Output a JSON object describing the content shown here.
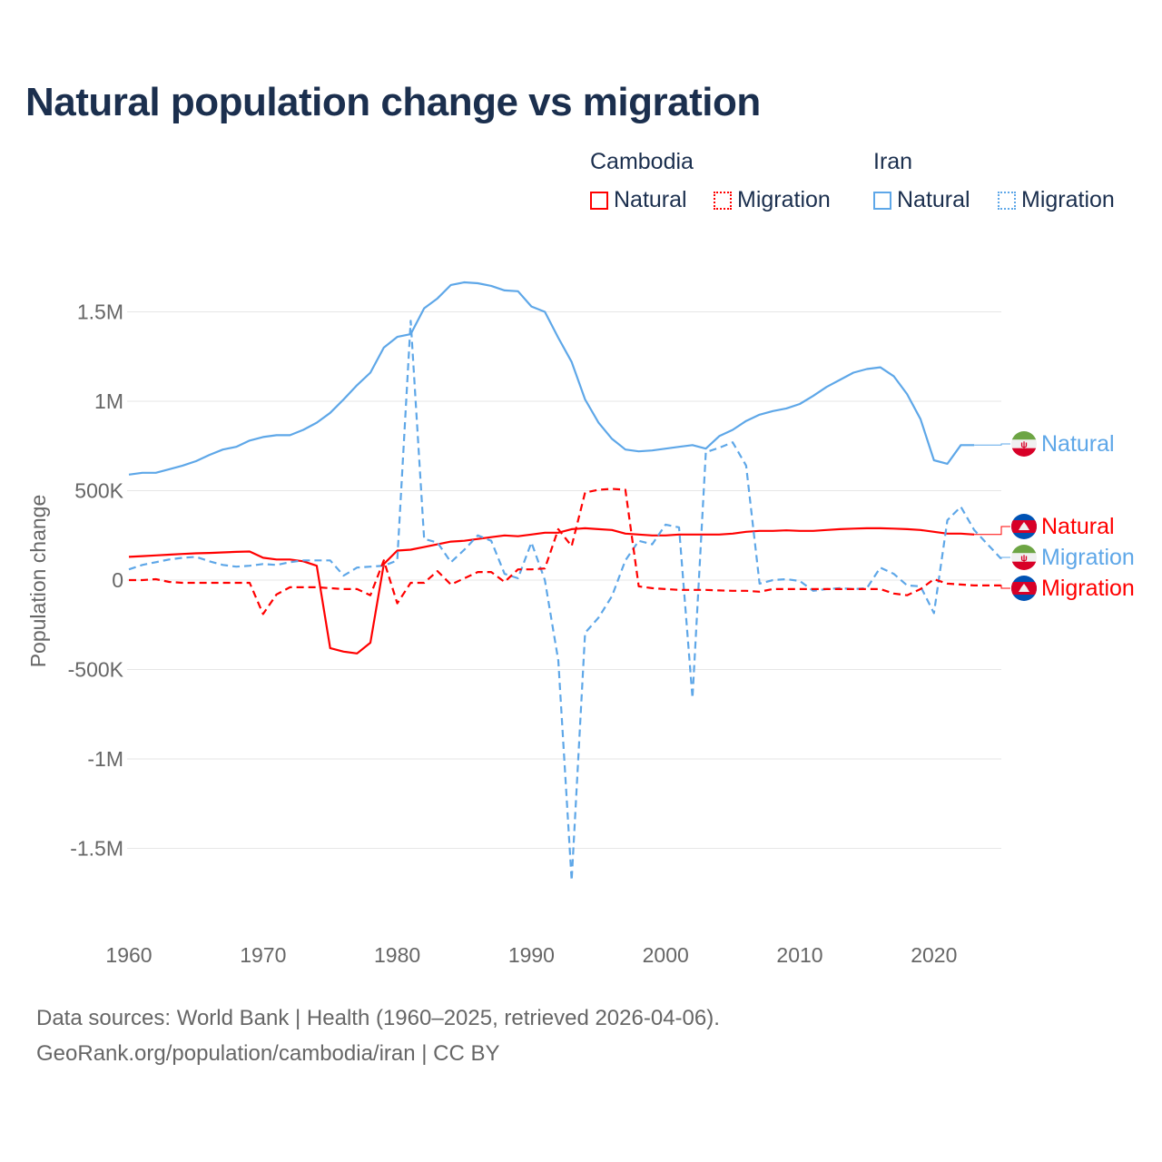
{
  "title": "Natural population change vs migration",
  "legend": {
    "groups": [
      {
        "name": "Cambodia",
        "items": [
          "Natural",
          "Migration"
        ],
        "color": "#ff0000"
      },
      {
        "name": "Iran",
        "items": [
          "Natural",
          "Migration"
        ],
        "color": "#5ea7e8"
      }
    ]
  },
  "footer": {
    "line1": "Data sources: World Bank | Health (1960–2025, retrieved 2026-04-06).",
    "line2": "GeoRank.org/population/cambodia/iran | CC BY"
  },
  "chart_data": {
    "type": "line",
    "title": "Natural population change vs migration",
    "xlabel": "",
    "ylabel": "Population change",
    "xlim": [
      1960,
      2025
    ],
    "ylim": [
      -1750000,
      1800000
    ],
    "x_ticks": [
      1960,
      1970,
      1980,
      1990,
      2000,
      2010,
      2020
    ],
    "y_ticks": [
      {
        "value": 1500000,
        "label": "1.5M"
      },
      {
        "value": 1000000,
        "label": "1M"
      },
      {
        "value": 500000,
        "label": "500K"
      },
      {
        "value": 0,
        "label": "0"
      },
      {
        "value": -500000,
        "label": "-500K"
      },
      {
        "value": -1000000,
        "label": "-1M"
      },
      {
        "value": -1500000,
        "label": "-1.5M"
      }
    ],
    "grid": true,
    "legend_position": "top-right",
    "series": [
      {
        "name": "Natural",
        "country": "Iran",
        "color": "#5ea7e8",
        "dash": false,
        "start": 1960,
        "values": [
          0.59,
          0.6,
          0.6,
          0.62,
          0.64,
          0.665,
          0.7,
          0.73,
          0.745,
          0.78,
          0.8,
          0.81,
          0.81,
          0.84,
          0.88,
          0.935,
          1.01,
          1.09,
          1.16,
          1.3,
          1.36,
          1.375,
          1.52,
          1.575,
          1.65,
          1.665,
          1.66,
          1.645,
          1.62,
          1.615,
          1.53,
          1.5,
          1.355,
          1.22,
          1.01,
          0.88,
          0.79,
          0.73,
          0.72,
          0.725,
          0.735,
          0.745,
          0.755,
          0.735,
          0.805,
          0.84,
          0.89,
          0.925,
          0.945,
          0.96,
          0.985,
          1.03,
          1.08,
          1.12,
          1.16,
          1.18,
          1.19,
          1.14,
          1.04,
          0.9,
          0.67,
          0.65,
          0.755,
          0.755
        ]
      },
      {
        "name": "Natural",
        "country": "Cambodia",
        "color": "#ff0000",
        "dash": false,
        "start": 1960,
        "values": [
          0.13,
          0.134,
          0.138,
          0.142,
          0.146,
          0.15,
          0.152,
          0.155,
          0.158,
          0.16,
          0.125,
          0.115,
          0.115,
          0.105,
          0.08,
          -0.38,
          -0.4,
          -0.41,
          -0.35,
          0.09,
          0.165,
          0.17,
          0.185,
          0.2,
          0.215,
          0.22,
          0.23,
          0.24,
          0.25,
          0.245,
          0.255,
          0.265,
          0.265,
          0.285,
          0.29,
          0.285,
          0.28,
          0.26,
          0.255,
          0.25,
          0.25,
          0.255,
          0.255,
          0.255,
          0.255,
          0.26,
          0.27,
          0.275,
          0.275,
          0.278,
          0.275,
          0.275,
          0.28,
          0.285,
          0.288,
          0.29,
          0.29,
          0.288,
          0.285,
          0.28,
          0.27,
          0.26,
          0.26,
          0.255
        ]
      },
      {
        "name": "Migration",
        "country": "Iran",
        "color": "#5ea7e8",
        "dash": true,
        "start": 1960,
        "values": [
          0.06,
          0.085,
          0.1,
          0.115,
          0.125,
          0.13,
          0.105,
          0.085,
          0.075,
          0.08,
          0.09,
          0.085,
          0.1,
          0.11,
          0.11,
          0.11,
          0.025,
          0.07,
          0.075,
          0.08,
          0.11,
          1.45,
          0.23,
          0.21,
          0.1,
          0.17,
          0.25,
          0.22,
          0.035,
          0.01,
          0.21,
          0.0,
          -0.45,
          -1.68,
          -0.295,
          -0.21,
          -0.09,
          0.11,
          0.22,
          0.2,
          0.31,
          0.295,
          -0.66,
          0.715,
          0.74,
          0.77,
          0.64,
          -0.02,
          0.0,
          0.005,
          -0.005,
          -0.06,
          -0.05,
          -0.045,
          -0.05,
          -0.045,
          0.07,
          0.035,
          -0.03,
          -0.035,
          -0.185,
          0.335,
          0.41,
          0.28,
          0.2,
          0.12
        ]
      },
      {
        "name": "Migration",
        "country": "Cambodia",
        "color": "#ff0000",
        "dash": true,
        "start": 1960,
        "values": [
          0.0,
          0.0,
          0.005,
          -0.01,
          -0.015,
          -0.015,
          -0.015,
          -0.015,
          -0.015,
          -0.015,
          -0.19,
          -0.08,
          -0.04,
          -0.04,
          -0.04,
          -0.045,
          -0.05,
          -0.05,
          -0.085,
          0.11,
          -0.13,
          -0.015,
          -0.015,
          0.05,
          -0.025,
          0.01,
          0.045,
          0.045,
          -0.01,
          0.06,
          0.06,
          0.065,
          0.285,
          0.19,
          0.49,
          0.505,
          0.51,
          0.505,
          -0.035,
          -0.045,
          -0.05,
          -0.055,
          -0.055,
          -0.055,
          -0.058,
          -0.06,
          -0.06,
          -0.065,
          -0.05,
          -0.05,
          -0.05,
          -0.05,
          -0.05,
          -0.05,
          -0.05,
          -0.05,
          -0.05,
          -0.075,
          -0.085,
          -0.05,
          0.005,
          -0.02,
          -0.025,
          -0.03,
          -0.03,
          -0.03
        ]
      }
    ],
    "unit_note": "values in millions",
    "end_labels": [
      {
        "text": "Natural",
        "country": "Iran",
        "color": "#5ea7e8"
      },
      {
        "text": "Natural",
        "country": "Cambodia",
        "color": "#ff0000"
      },
      {
        "text": "Migration",
        "country": "Iran",
        "color": "#5ea7e8"
      },
      {
        "text": "Migration",
        "country": "Cambodia",
        "color": "#ff0000"
      }
    ]
  }
}
